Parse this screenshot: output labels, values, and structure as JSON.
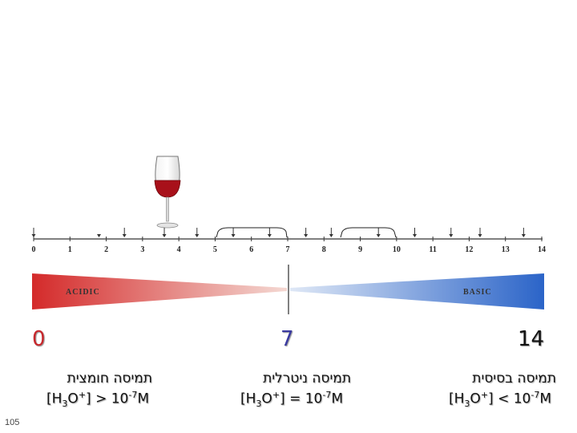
{
  "scale": {
    "ticks": [
      "0",
      "1",
      "2",
      "3",
      "4",
      "5",
      "6",
      "7",
      "8",
      "9",
      "10",
      "11",
      "12",
      "13",
      "14"
    ],
    "arrow_positions": [
      0,
      2.5,
      3.6,
      4.5,
      5.5,
      6.5,
      7.5,
      8.2,
      9.5,
      10.5,
      11.5,
      12.3,
      13.5
    ],
    "small_arrow_positions": [
      1.8
    ],
    "neutral_point": 7,
    "left_band_label": "ACIDIC",
    "right_band_label": "BASIC",
    "acidic_color": "#d42a2a",
    "basic_color": "#2b64c8",
    "wine_glass_position": 3.6
  },
  "labels": {
    "acidic_number": "0",
    "neutral_number": "7",
    "basic_number": "14",
    "acidic_heading": "תמיסה חומצית",
    "neutral_heading": "תמיסה ניטרלית",
    "basic_heading": "תמיסה בסיסית",
    "formula_prefix": "[H",
    "formula_sub": "3",
    "formula_mid": "O",
    "formula_sup": "+",
    "formula_close": "]",
    "acidic_op": ">",
    "neutral_op": "=",
    "basic_op": "<",
    "formula_base": "10",
    "formula_exp": "-7",
    "formula_unit": "M"
  },
  "slide_number": "105"
}
